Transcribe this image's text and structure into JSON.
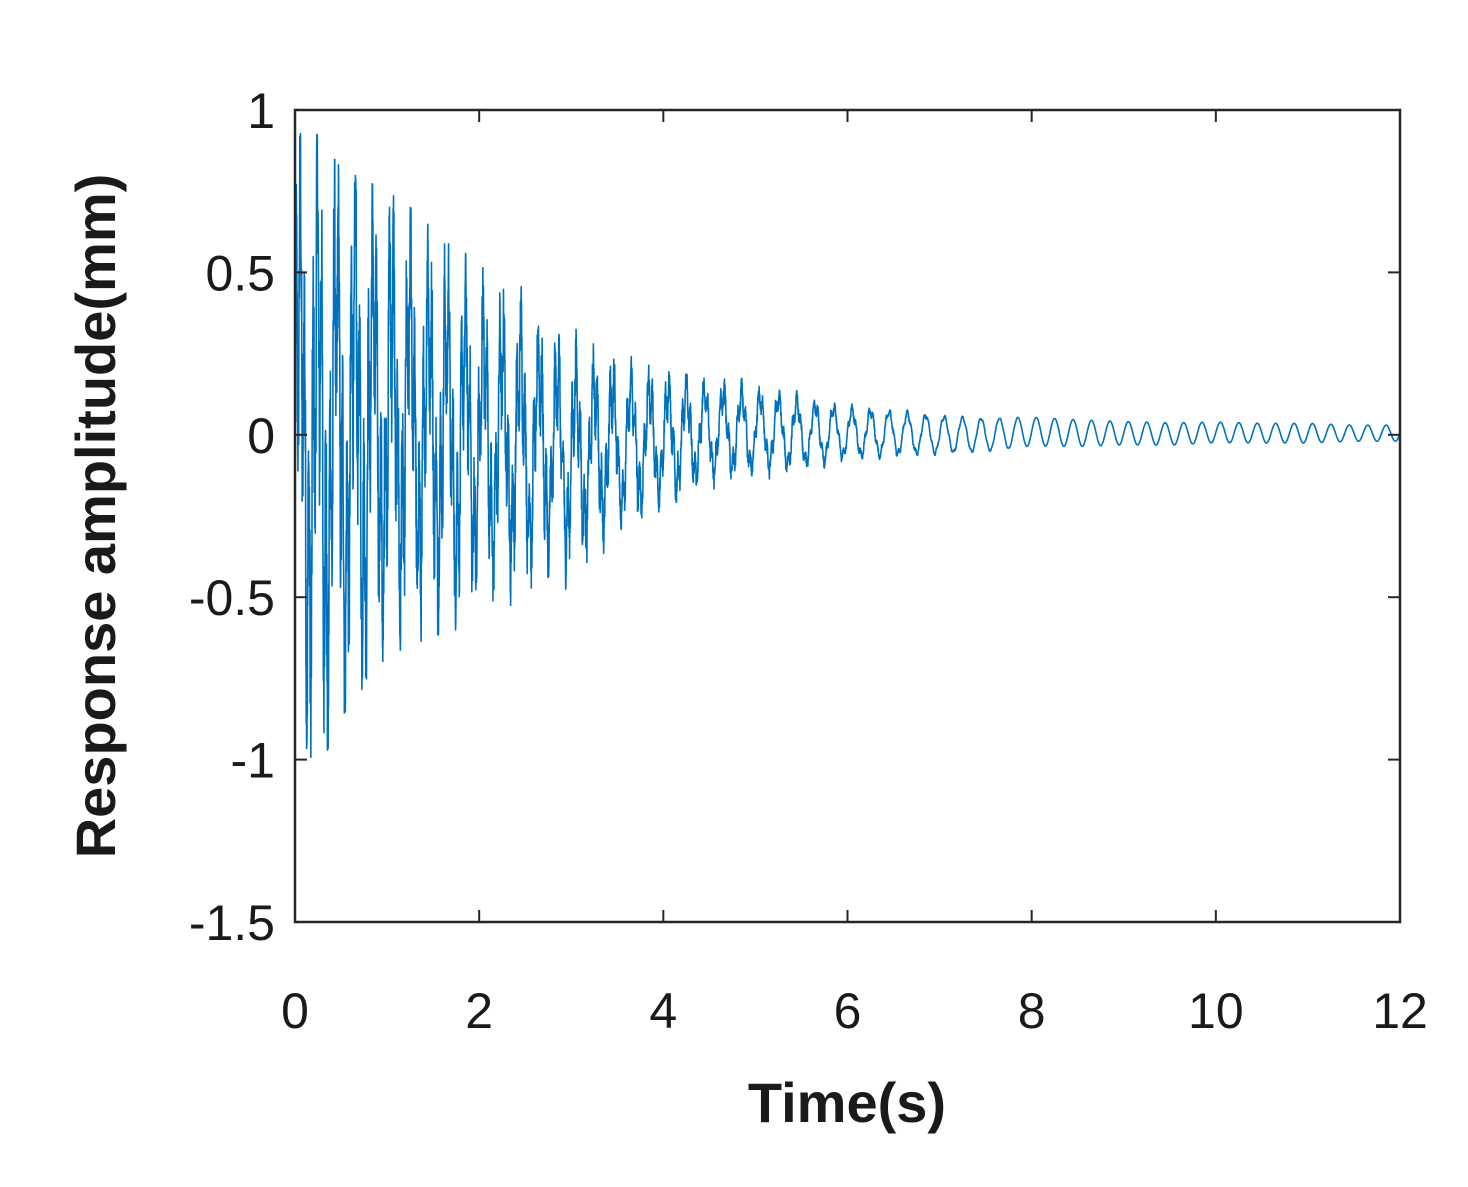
{
  "chart_data": {
    "type": "line",
    "title": "",
    "xlabel": "Time(s)",
    "ylabel": "Response amplitude(mm)",
    "xlim": [
      0,
      12
    ],
    "ylim": [
      -1.5,
      1
    ],
    "xticks": [
      0,
      2,
      4,
      6,
      8,
      10,
      12
    ],
    "yticks": [
      -1.5,
      -1,
      -0.5,
      0,
      0.5,
      1
    ],
    "xtick_labels": [
      "0",
      "2",
      "4",
      "6",
      "8",
      "10",
      "12"
    ],
    "ytick_labels": [
      "-1.5",
      "-1",
      "-0.5",
      "0",
      "0.5",
      "1"
    ],
    "grid": false,
    "legend": "none",
    "series_color": "#0072BD",
    "envelope": {
      "t": [
        0,
        0.1,
        0.25,
        0.5,
        1,
        1.5,
        2,
        2.5,
        3,
        3.5,
        4,
        4.5,
        5,
        5.5,
        6,
        6.5,
        7,
        7.5,
        8,
        8.5,
        9,
        9.5,
        10,
        10.5,
        11,
        11.5,
        12
      ],
      "upper": [
        0.85,
        0.98,
        0.92,
        0.82,
        0.75,
        0.65,
        0.52,
        0.45,
        0.33,
        0.28,
        0.25,
        0.22,
        0.2,
        0.17,
        0.13,
        0.12,
        0.1,
        0.09,
        0.09,
        0.08,
        0.07,
        0.065,
        0.065,
        0.06,
        0.06,
        0.05,
        0.05
      ],
      "lower": [
        -0.85,
        -0.95,
        -1.04,
        -0.87,
        -0.68,
        -0.62,
        -0.58,
        -0.5,
        -0.48,
        -0.35,
        -0.28,
        -0.2,
        -0.18,
        -0.16,
        -0.12,
        -0.11,
        -0.1,
        -0.09,
        -0.07,
        -0.07,
        -0.06,
        -0.06,
        -0.05,
        -0.05,
        -0.05,
        -0.04,
        -0.04
      ]
    },
    "dominant_period_s": 0.2
  }
}
